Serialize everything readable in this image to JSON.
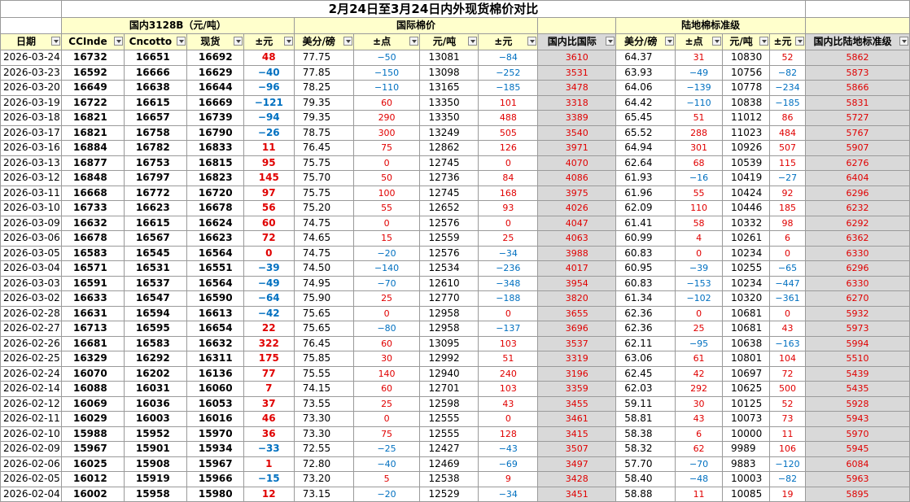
{
  "title": "2月24日至3月24日内外现货棉价对比",
  "groups": {
    "domestic": "国内3128B（元/吨）",
    "intl": "国际棉价",
    "ratio_intl": "",
    "land": "陆地棉标准级",
    "ratio_land": ""
  },
  "headers": [
    "日期",
    "CCInde",
    "Cncotto",
    "现货",
    "±元",
    "美分/磅",
    "±点",
    "元/吨",
    "±元",
    "国内比国际",
    "美分/磅",
    "±点",
    "元/吨",
    "±元",
    "国内比陆地标准级"
  ],
  "colors": {
    "header_bg": "#ffffcc",
    "ratio_bg": "#d9d9d9",
    "positive": "#e00000",
    "negative": "#0070c0",
    "ratio_text": "#e00000"
  },
  "rows": [
    {
      "date": "2026-03-24",
      "cc": "16732",
      "cn": "16651",
      "spot": "16692",
      "diff": "48",
      "us": "77.75",
      "usd": "−50",
      "yuan": "13081",
      "yd": "−84",
      "r1": "3610",
      "us2": "64.37",
      "usd2": "31",
      "yuan2": "10830",
      "yd2": "52",
      "r2": "5862"
    },
    {
      "date": "2026-03-23",
      "cc": "16592",
      "cn": "16666",
      "spot": "16629",
      "diff": "−40",
      "us": "77.85",
      "usd": "−150",
      "yuan": "13098",
      "yd": "−252",
      "r1": "3531",
      "us2": "63.93",
      "usd2": "−49",
      "yuan2": "10756",
      "yd2": "−82",
      "r2": "5873"
    },
    {
      "date": "2026-03-20",
      "cc": "16649",
      "cn": "16638",
      "spot": "16644",
      "diff": "−96",
      "us": "78.25",
      "usd": "−110",
      "yuan": "13165",
      "yd": "−185",
      "r1": "3478",
      "us2": "64.06",
      "usd2": "−139",
      "yuan2": "10778",
      "yd2": "−234",
      "r2": "5866"
    },
    {
      "date": "2026-03-19",
      "cc": "16722",
      "cn": "16615",
      "spot": "16669",
      "diff": "−121",
      "us": "79.35",
      "usd": "60",
      "yuan": "13350",
      "yd": "101",
      "r1": "3318",
      "us2": "64.42",
      "usd2": "−110",
      "yuan2": "10838",
      "yd2": "−185",
      "r2": "5831"
    },
    {
      "date": "2026-03-18",
      "cc": "16821",
      "cn": "16657",
      "spot": "16739",
      "diff": "−94",
      "us": "79.35",
      "usd": "290",
      "yuan": "13350",
      "yd": "488",
      "r1": "3389",
      "us2": "65.45",
      "usd2": "51",
      "yuan2": "11012",
      "yd2": "86",
      "r2": "5727"
    },
    {
      "date": "2026-03-17",
      "cc": "16821",
      "cn": "16758",
      "spot": "16790",
      "diff": "−26",
      "us": "78.75",
      "usd": "300",
      "yuan": "13249",
      "yd": "505",
      "r1": "3540",
      "us2": "65.52",
      "usd2": "288",
      "yuan2": "11023",
      "yd2": "484",
      "r2": "5767"
    },
    {
      "date": "2026-03-16",
      "cc": "16884",
      "cn": "16782",
      "spot": "16833",
      "diff": "11",
      "us": "76.45",
      "usd": "75",
      "yuan": "12862",
      "yd": "126",
      "r1": "3971",
      "us2": "64.94",
      "usd2": "301",
      "yuan2": "10926",
      "yd2": "507",
      "r2": "5907"
    },
    {
      "date": "2026-03-13",
      "cc": "16877",
      "cn": "16753",
      "spot": "16815",
      "diff": "95",
      "us": "75.75",
      "usd": "0",
      "yuan": "12745",
      "yd": "0",
      "r1": "4070",
      "us2": "62.64",
      "usd2": "68",
      "yuan2": "10539",
      "yd2": "115",
      "r2": "6276"
    },
    {
      "date": "2026-03-12",
      "cc": "16848",
      "cn": "16797",
      "spot": "16823",
      "diff": "145",
      "us": "75.70",
      "usd": "50",
      "yuan": "12736",
      "yd": "84",
      "r1": "4086",
      "us2": "61.93",
      "usd2": "−16",
      "yuan2": "10419",
      "yd2": "−27",
      "r2": "6404"
    },
    {
      "date": "2026-03-11",
      "cc": "16668",
      "cn": "16772",
      "spot": "16720",
      "diff": "97",
      "us": "75.75",
      "usd": "100",
      "yuan": "12745",
      "yd": "168",
      "r1": "3975",
      "us2": "61.96",
      "usd2": "55",
      "yuan2": "10424",
      "yd2": "92",
      "r2": "6296"
    },
    {
      "date": "2026-03-10",
      "cc": "16733",
      "cn": "16623",
      "spot": "16678",
      "diff": "56",
      "us": "75.20",
      "usd": "55",
      "yuan": "12652",
      "yd": "93",
      "r1": "4026",
      "us2": "62.09",
      "usd2": "110",
      "yuan2": "10446",
      "yd2": "185",
      "r2": "6232"
    },
    {
      "date": "2026-03-09",
      "cc": "16632",
      "cn": "16615",
      "spot": "16624",
      "diff": "60",
      "us": "74.75",
      "usd": "0",
      "yuan": "12576",
      "yd": "0",
      "r1": "4047",
      "us2": "61.41",
      "usd2": "58",
      "yuan2": "10332",
      "yd2": "98",
      "r2": "6292"
    },
    {
      "date": "2026-03-06",
      "cc": "16678",
      "cn": "16567",
      "spot": "16623",
      "diff": "72",
      "us": "74.65",
      "usd": "15",
      "yuan": "12559",
      "yd": "25",
      "r1": "4063",
      "us2": "60.99",
      "usd2": "4",
      "yuan2": "10261",
      "yd2": "6",
      "r2": "6362"
    },
    {
      "date": "2026-03-05",
      "cc": "16583",
      "cn": "16545",
      "spot": "16564",
      "diff": "0",
      "us": "74.75",
      "usd": "−20",
      "yuan": "12576",
      "yd": "−34",
      "r1": "3988",
      "us2": "60.83",
      "usd2": "0",
      "yuan2": "10234",
      "yd2": "0",
      "r2": "6330"
    },
    {
      "date": "2026-03-04",
      "cc": "16571",
      "cn": "16531",
      "spot": "16551",
      "diff": "−39",
      "us": "74.50",
      "usd": "−140",
      "yuan": "12534",
      "yd": "−236",
      "r1": "4017",
      "us2": "60.95",
      "usd2": "−39",
      "yuan2": "10255",
      "yd2": "−65",
      "r2": "6296"
    },
    {
      "date": "2026-03-03",
      "cc": "16591",
      "cn": "16537",
      "spot": "16564",
      "diff": "−49",
      "us": "74.95",
      "usd": "−70",
      "yuan": "12610",
      "yd": "−348",
      "r1": "3954",
      "us2": "60.83",
      "usd2": "−153",
      "yuan2": "10234",
      "yd2": "−447",
      "r2": "6330"
    },
    {
      "date": "2026-03-02",
      "cc": "16633",
      "cn": "16547",
      "spot": "16590",
      "diff": "−64",
      "us": "75.90",
      "usd": "25",
      "yuan": "12770",
      "yd": "−188",
      "r1": "3820",
      "us2": "61.34",
      "usd2": "−102",
      "yuan2": "10320",
      "yd2": "−361",
      "r2": "6270"
    },
    {
      "date": "2026-02-28",
      "cc": "16631",
      "cn": "16594",
      "spot": "16613",
      "diff": "−42",
      "us": "75.65",
      "usd": "0",
      "yuan": "12958",
      "yd": "0",
      "r1": "3655",
      "us2": "62.36",
      "usd2": "0",
      "yuan2": "10681",
      "yd2": "0",
      "r2": "5932"
    },
    {
      "date": "2026-02-27",
      "cc": "16713",
      "cn": "16595",
      "spot": "16654",
      "diff": "22",
      "us": "75.65",
      "usd": "−80",
      "yuan": "12958",
      "yd": "−137",
      "r1": "3696",
      "us2": "62.36",
      "usd2": "25",
      "yuan2": "10681",
      "yd2": "43",
      "r2": "5973"
    },
    {
      "date": "2026-02-26",
      "cc": "16681",
      "cn": "16583",
      "spot": "16632",
      "diff": "322",
      "us": "76.45",
      "usd": "60",
      "yuan": "13095",
      "yd": "103",
      "r1": "3537",
      "us2": "62.11",
      "usd2": "−95",
      "yuan2": "10638",
      "yd2": "−163",
      "r2": "5994"
    },
    {
      "date": "2026-02-25",
      "cc": "16329",
      "cn": "16292",
      "spot": "16311",
      "diff": "175",
      "us": "75.85",
      "usd": "30",
      "yuan": "12992",
      "yd": "51",
      "r1": "3319",
      "us2": "63.06",
      "usd2": "61",
      "yuan2": "10801",
      "yd2": "104",
      "r2": "5510"
    },
    {
      "date": "2026-02-24",
      "cc": "16070",
      "cn": "16202",
      "spot": "16136",
      "diff": "77",
      "us": "75.55",
      "usd": "140",
      "yuan": "12940",
      "yd": "240",
      "r1": "3196",
      "us2": "62.45",
      "usd2": "42",
      "yuan2": "10697",
      "yd2": "72",
      "r2": "5439"
    },
    {
      "date": "2026-02-14",
      "cc": "16088",
      "cn": "16031",
      "spot": "16060",
      "diff": "7",
      "us": "74.15",
      "usd": "60",
      "yuan": "12701",
      "yd": "103",
      "r1": "3359",
      "us2": "62.03",
      "usd2": "292",
      "yuan2": "10625",
      "yd2": "500",
      "r2": "5435"
    },
    {
      "date": "2026-02-12",
      "cc": "16069",
      "cn": "16036",
      "spot": "16053",
      "diff": "37",
      "us": "73.55",
      "usd": "25",
      "yuan": "12598",
      "yd": "43",
      "r1": "3455",
      "us2": "59.11",
      "usd2": "30",
      "yuan2": "10125",
      "yd2": "52",
      "r2": "5928"
    },
    {
      "date": "2026-02-11",
      "cc": "16029",
      "cn": "16003",
      "spot": "16016",
      "diff": "46",
      "us": "73.30",
      "usd": "0",
      "yuan": "12555",
      "yd": "0",
      "r1": "3461",
      "us2": "58.81",
      "usd2": "43",
      "yuan2": "10073",
      "yd2": "73",
      "r2": "5943"
    },
    {
      "date": "2026-02-10",
      "cc": "15988",
      "cn": "15952",
      "spot": "15970",
      "diff": "36",
      "us": "73.30",
      "usd": "75",
      "yuan": "12555",
      "yd": "128",
      "r1": "3415",
      "us2": "58.38",
      "usd2": "6",
      "yuan2": "10000",
      "yd2": "11",
      "r2": "5970"
    },
    {
      "date": "2026-02-09",
      "cc": "15967",
      "cn": "15901",
      "spot": "15934",
      "diff": "−33",
      "us": "72.55",
      "usd": "−25",
      "yuan": "12427",
      "yd": "−43",
      "r1": "3507",
      "us2": "58.32",
      "usd2": "62",
      "yuan2": "9989",
      "yd2": "106",
      "r2": "5945"
    },
    {
      "date": "2026-02-06",
      "cc": "16025",
      "cn": "15908",
      "spot": "15967",
      "diff": "1",
      "us": "72.80",
      "usd": "−40",
      "yuan": "12469",
      "yd": "−69",
      "r1": "3497",
      "us2": "57.70",
      "usd2": "−70",
      "yuan2": "9883",
      "yd2": "−120",
      "r2": "6084"
    },
    {
      "date": "2026-02-05",
      "cc": "16012",
      "cn": "15919",
      "spot": "15966",
      "diff": "−15",
      "us": "73.20",
      "usd": "5",
      "yuan": "12538",
      "yd": "9",
      "r1": "3428",
      "us2": "58.40",
      "usd2": "−48",
      "yuan2": "10003",
      "yd2": "−82",
      "r2": "5963"
    },
    {
      "date": "2026-02-04",
      "cc": "16002",
      "cn": "15958",
      "spot": "15980",
      "diff": "12",
      "us": "73.15",
      "usd": "−20",
      "yuan": "12529",
      "yd": "−34",
      "r1": "3451",
      "us2": "58.88",
      "usd2": "11",
      "yuan2": "10085",
      "yd2": "19",
      "r2": "5895"
    }
  ]
}
